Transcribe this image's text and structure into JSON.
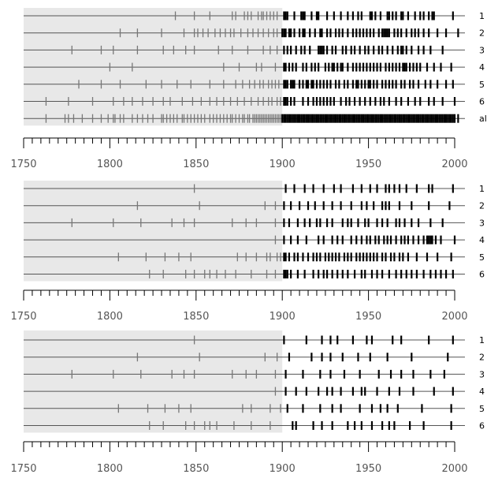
{
  "chart_data": [
    {
      "type": "scatter",
      "title": "",
      "xlabel": "",
      "ylabel": "",
      "xlim": [
        1750,
        2000
      ],
      "xticks": [
        "1750",
        "1800",
        "1850",
        "1900",
        "1950",
        "2000"
      ],
      "shaded_range": [
        1750,
        1900
      ],
      "series": [
        {
          "name": "1",
          "values": [
            1838,
            1849,
            1858,
            1871,
            1873,
            1878,
            1880,
            1882,
            1886,
            1888,
            1889,
            1891,
            1893,
            1895,
            1897,
            1901,
            1902,
            1903,
            1907,
            1911,
            1912,
            1913,
            1917,
            1920,
            1921,
            1926,
            1930,
            1934,
            1938,
            1941,
            1944,
            1946,
            1951,
            1952,
            1954,
            1957,
            1961,
            1962,
            1964,
            1966,
            1969,
            1970,
            1973,
            1977,
            1980,
            1982,
            1985,
            1987,
            1988,
            1999
          ]
        },
        {
          "name": "2",
          "values": [
            1806,
            1816,
            1830,
            1843,
            1849,
            1851,
            1854,
            1857,
            1861,
            1864,
            1867,
            1870,
            1872,
            1876,
            1880,
            1883,
            1886,
            1889,
            1892,
            1895,
            1897,
            1900,
            1901,
            1902,
            1904,
            1905,
            1907,
            1910,
            1912,
            1913,
            1916,
            1919,
            1922,
            1923,
            1926,
            1928,
            1931,
            1933,
            1935,
            1938,
            1941,
            1943,
            1945,
            1947,
            1949,
            1951,
            1953,
            1956,
            1958,
            1959,
            1960,
            1961,
            1962,
            1965,
            1967,
            1969,
            1972,
            1975,
            1977,
            1979,
            1982,
            1985,
            1990,
            1995,
            2002
          ]
        },
        {
          "name": "3",
          "values": [
            1778,
            1795,
            1802,
            1816,
            1831,
            1837,
            1844,
            1849,
            1863,
            1871,
            1880,
            1889,
            1893,
            1897,
            1901,
            1903,
            1905,
            1908,
            1911,
            1913,
            1916,
            1921,
            1922,
            1923,
            1924,
            1926,
            1929,
            1931,
            1935,
            1937,
            1940,
            1942,
            1945,
            1948,
            1950,
            1953,
            1956,
            1958,
            1961,
            1964,
            1967,
            1969,
            1970,
            1972,
            1975,
            1979,
            1982,
            1986,
            1993
          ]
        },
        {
          "name": "4",
          "values": [
            1800,
            1813,
            1866,
            1875,
            1885,
            1888,
            1896,
            1901,
            1902,
            1904,
            1906,
            1908,
            1912,
            1914,
            1917,
            1919,
            1921,
            1925,
            1927,
            1929,
            1930,
            1932,
            1934,
            1935,
            1938,
            1941,
            1943,
            1945,
            1947,
            1949,
            1951,
            1953,
            1955,
            1957,
            1960,
            1962,
            1964,
            1966,
            1968,
            1970,
            1971,
            1972,
            1974,
            1976,
            1978,
            1980,
            1984,
            1988,
            1992,
            1998
          ]
        },
        {
          "name": "5",
          "values": [
            1782,
            1795,
            1806,
            1821,
            1830,
            1839,
            1847,
            1858,
            1866,
            1873,
            1877,
            1881,
            1884,
            1887,
            1889,
            1892,
            1894,
            1896,
            1898,
            1901,
            1902,
            1903,
            1905,
            1906,
            1907,
            1910,
            1912,
            1914,
            1915,
            1917,
            1918,
            1920,
            1922,
            1924,
            1926,
            1928,
            1931,
            1933,
            1936,
            1938,
            1941,
            1943,
            1944,
            1946,
            1948,
            1950,
            1951,
            1953,
            1955,
            1958,
            1960,
            1962,
            1964,
            1966,
            1969,
            1971,
            1974,
            1976,
            1979,
            1983,
            1986,
            1990,
            1995,
            1999
          ]
        },
        {
          "name": "6",
          "values": [
            1763,
            1776,
            1790,
            1802,
            1808,
            1813,
            1819,
            1825,
            1831,
            1835,
            1842,
            1848,
            1853,
            1858,
            1862,
            1866,
            1870,
            1874,
            1878,
            1882,
            1886,
            1889,
            1892,
            1894,
            1897,
            1899,
            1901,
            1902,
            1903,
            1905,
            1907,
            1912,
            1915,
            1918,
            1920,
            1922,
            1924,
            1926,
            1928,
            1930,
            1934,
            1937,
            1939,
            1942,
            1945,
            1948,
            1951,
            1954,
            1957,
            1959,
            1962,
            1966,
            1969,
            1973,
            1977,
            1980,
            1985,
            1988,
            1993,
            2000
          ]
        },
        {
          "name": "all",
          "values": [
            1763,
            1774,
            1776,
            1779,
            1784,
            1790,
            1795,
            1799,
            1802,
            1803,
            1806,
            1808,
            1813,
            1816,
            1819,
            1822,
            1825,
            1830,
            1831,
            1833,
            1835,
            1837,
            1839,
            1842,
            1843,
            1845,
            1847,
            1849,
            1851,
            1853,
            1855,
            1858,
            1860,
            1862,
            1864,
            1866,
            1868,
            1870,
            1871,
            1873,
            1875,
            1877,
            1878,
            1880,
            1881,
            1883,
            1884,
            1885,
            1886,
            1887,
            1888,
            1889,
            1890,
            1891,
            1892,
            1893,
            1894,
            1895,
            1896,
            1897,
            1898,
            1899,
            1900,
            1901,
            1902,
            1903,
            1904,
            1905,
            1906,
            1907,
            1908,
            1909,
            1910,
            1911,
            1912,
            1913,
            1914,
            1915,
            1916,
            1917,
            1918,
            1919,
            1920,
            1921,
            1922,
            1923,
            1924,
            1925,
            1926,
            1927,
            1928,
            1929,
            1930,
            1931,
            1932,
            1933,
            1934,
            1935,
            1936,
            1937,
            1938,
            1939,
            1940,
            1941,
            1942,
            1943,
            1944,
            1945,
            1946,
            1947,
            1948,
            1949,
            1950,
            1951,
            1952,
            1953,
            1954,
            1955,
            1956,
            1957,
            1958,
            1959,
            1960,
            1961,
            1962,
            1963,
            1964,
            1965,
            1966,
            1967,
            1968,
            1969,
            1970,
            1971,
            1972,
            1973,
            1974,
            1975,
            1976,
            1977,
            1978,
            1979,
            1980,
            1981,
            1982,
            1983,
            1984,
            1985,
            1986,
            1987,
            1988,
            1989,
            1990,
            1991,
            1992,
            1993,
            1994,
            1995,
            1996,
            1997,
            1998,
            1999,
            2000,
            2002
          ]
        }
      ]
    },
    {
      "type": "scatter",
      "title": "",
      "xlabel": "",
      "ylabel": "",
      "xlim": [
        1750,
        2000
      ],
      "xticks": [
        "1750",
        "1800",
        "1850",
        "1900",
        "1950",
        "2000"
      ],
      "shaded_range": [
        1750,
        1900
      ],
      "series": [
        {
          "name": "1",
          "values": [
            1849,
            1902,
            1907,
            1913,
            1918,
            1924,
            1930,
            1934,
            1941,
            1946,
            1951,
            1955,
            1960,
            1962,
            1965,
            1968,
            1972,
            1978,
            1985,
            1987,
            1999
          ]
        },
        {
          "name": "2",
          "values": [
            1816,
            1852,
            1890,
            1896,
            1901,
            1905,
            1910,
            1915,
            1919,
            1924,
            1929,
            1934,
            1940,
            1946,
            1949,
            1953,
            1958,
            1960,
            1962,
            1968,
            1975,
            1985,
            1997
          ]
        },
        {
          "name": "3",
          "values": [
            1778,
            1802,
            1818,
            1836,
            1843,
            1849,
            1871,
            1879,
            1885,
            1896,
            1901,
            1904,
            1909,
            1913,
            1916,
            1920,
            1922,
            1926,
            1929,
            1935,
            1938,
            1940,
            1944,
            1948,
            1950,
            1955,
            1958,
            1961,
            1966,
            1968,
            1971,
            1975,
            1979,
            1986,
            1993
          ]
        },
        {
          "name": "4",
          "values": [
            1896,
            1901,
            1905,
            1909,
            1914,
            1921,
            1924,
            1929,
            1932,
            1935,
            1940,
            1943,
            1946,
            1949,
            1951,
            1954,
            1956,
            1959,
            1961,
            1963,
            1966,
            1969,
            1971,
            1973,
            1976,
            1979,
            1982,
            1984,
            1985,
            1986,
            1987,
            1989,
            1992,
            2000
          ]
        },
        {
          "name": "5",
          "values": [
            1805,
            1821,
            1832,
            1840,
            1847,
            1874,
            1879,
            1885,
            1891,
            1893,
            1897,
            1899,
            1901,
            1902,
            1904,
            1907,
            1909,
            1912,
            1915,
            1918,
            1920,
            1922,
            1925,
            1927,
            1929,
            1931,
            1933,
            1936,
            1938,
            1940,
            1943,
            1945,
            1947,
            1949,
            1951,
            1953,
            1955,
            1958,
            1960,
            1963,
            1965,
            1968,
            1970,
            1973,
            1978,
            1984,
            1990,
            1998
          ]
        },
        {
          "name": "6",
          "values": [
            1823,
            1831,
            1844,
            1849,
            1855,
            1858,
            1862,
            1867,
            1873,
            1882,
            1891,
            1896,
            1901,
            1902,
            1903,
            1905,
            1909,
            1913,
            1918,
            1921,
            1924,
            1926,
            1929,
            1932,
            1935,
            1938,
            1942,
            1946,
            1948,
            1952,
            1955,
            1958,
            1962,
            1966,
            1969,
            1972,
            1975,
            1978,
            1982,
            1986,
            1989,
            1992,
            1995,
            1999
          ]
        }
      ]
    },
    {
      "type": "scatter",
      "title": "",
      "xlabel": "",
      "ylabel": "",
      "xlim": [
        1750,
        2000
      ],
      "xticks": [
        "1750",
        "1800",
        "1850",
        "1900",
        "1950",
        "2000"
      ],
      "shaded_range": [
        1750,
        1900
      ],
      "series": [
        {
          "name": "1",
          "values": [
            1849,
            1901,
            1914,
            1923,
            1928,
            1932,
            1941,
            1949,
            1952,
            1964,
            1969,
            1985,
            1999
          ]
        },
        {
          "name": "2",
          "values": [
            1816,
            1852,
            1890,
            1897,
            1904,
            1917,
            1923,
            1928,
            1935,
            1944,
            1951,
            1961,
            1975,
            1996
          ]
        },
        {
          "name": "3",
          "values": [
            1778,
            1802,
            1818,
            1836,
            1843,
            1849,
            1871,
            1879,
            1885,
            1896,
            1902,
            1912,
            1922,
            1928,
            1936,
            1945,
            1956,
            1963,
            1969,
            1976,
            1986,
            1994
          ]
        },
        {
          "name": "4",
          "values": [
            1896,
            1902,
            1908,
            1914,
            1921,
            1926,
            1929,
            1934,
            1941,
            1946,
            1948,
            1955,
            1962,
            1968,
            1976,
            1988,
            1999
          ]
        },
        {
          "name": "5",
          "values": [
            1805,
            1822,
            1832,
            1840,
            1847,
            1877,
            1882,
            1893,
            1899,
            1903,
            1912,
            1922,
            1929,
            1934,
            1945,
            1952,
            1957,
            1961,
            1967,
            1981,
            1998
          ]
        },
        {
          "name": "6",
          "values": [
            1823,
            1831,
            1844,
            1849,
            1855,
            1858,
            1862,
            1872,
            1882,
            1893,
            1906,
            1908,
            1918,
            1923,
            1929,
            1938,
            1942,
            1946,
            1952,
            1958,
            1962,
            1965,
            1974,
            1982,
            1998
          ]
        }
      ]
    }
  ]
}
